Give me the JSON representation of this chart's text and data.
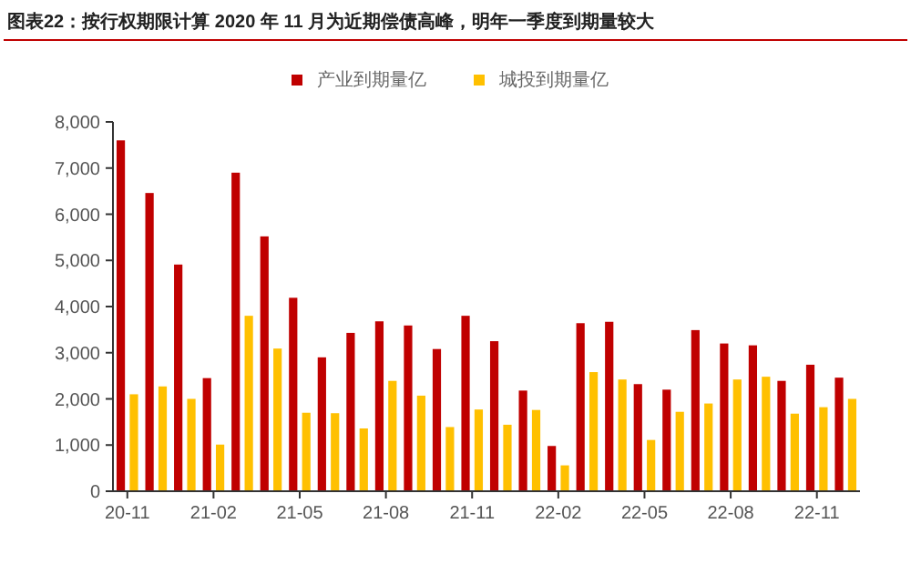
{
  "chart_data": {
    "type": "bar",
    "title": "图表22：按行权期限计算 2020 年 11 月为近期偿债高峰，明年一季度到期量较大",
    "categories": [
      "20-11",
      null,
      null,
      "21-02",
      null,
      null,
      "21-05",
      null,
      null,
      "21-08",
      null,
      null,
      "21-11",
      null,
      null,
      "22-02",
      null,
      null,
      "22-05",
      null,
      null,
      "22-08",
      null,
      null,
      "22-11",
      null
    ],
    "series": [
      {
        "name": "产业到期量亿",
        "color": "#c00000",
        "values": [
          7600,
          6460,
          4910,
          2450,
          6900,
          5520,
          4190,
          2900,
          3430,
          3680,
          3590,
          3080,
          3800,
          3250,
          2180,
          980,
          3640,
          3670,
          2320,
          2200,
          3490,
          3200,
          3160,
          2390,
          2740,
          2460
        ]
      },
      {
        "name": "城投到期量亿",
        "color": "#ffc000",
        "values": [
          2100,
          2270,
          2000,
          1010,
          3800,
          3090,
          1700,
          1690,
          1360,
          2390,
          2070,
          1390,
          1770,
          1440,
          1760,
          560,
          2580,
          2420,
          1110,
          1720,
          1900,
          2420,
          2480,
          1680,
          1820,
          2000
        ]
      }
    ],
    "ylim": [
      0,
      8000
    ],
    "yticks": [
      0,
      {
        "value": 1000,
        "label": "1,000"
      },
      {
        "value": 2000,
        "label": "2,000"
      },
      {
        "value": 3000,
        "label": "3,000"
      },
      {
        "value": 4000,
        "label": "4,000"
      },
      {
        "value": 5000,
        "label": "5,000"
      },
      {
        "value": 6000,
        "label": "6,000"
      },
      {
        "value": 7000,
        "label": "7,000"
      },
      {
        "value": 8000,
        "label": "8,000"
      }
    ],
    "grid": false,
    "legend": "top"
  }
}
